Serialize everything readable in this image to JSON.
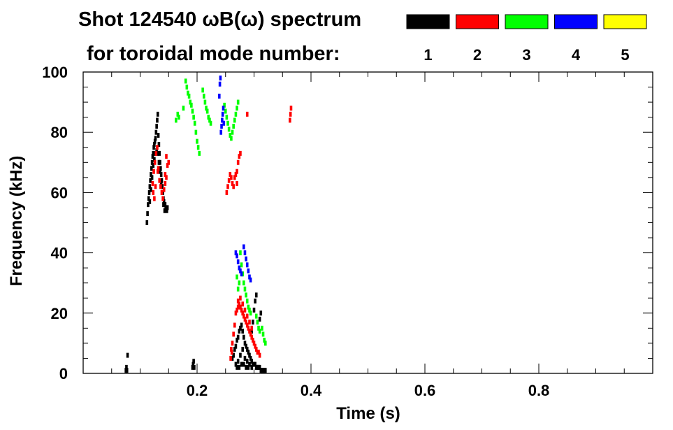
{
  "chart_data": {
    "type": "scatter",
    "title": "Shot 124540 ωB(ω) spectrum",
    "subtitle": "for toroidal mode number:",
    "xlabel": "Time (s)",
    "ylabel": "Frequency (kHz)",
    "xlim": [
      0.0,
      1.0
    ],
    "ylim": [
      0,
      100
    ],
    "x_ticks": [
      {
        "value": 0.2,
        "label": "0.2"
      },
      {
        "value": 0.4,
        "label": "0.4"
      },
      {
        "value": 0.6,
        "label": "0.6"
      },
      {
        "value": 0.8,
        "label": "0.8"
      }
    ],
    "y_ticks": [
      {
        "value": 0,
        "label": "0"
      },
      {
        "value": 20,
        "label": "20"
      },
      {
        "value": 40,
        "label": "40"
      },
      {
        "value": 60,
        "label": "60"
      },
      {
        "value": 80,
        "label": "80"
      },
      {
        "value": 100,
        "label": "100"
      }
    ],
    "legend_position": "top-right",
    "series": [
      {
        "name": "1",
        "color": "#000000",
        "points": [
          [
            0.112,
            50
          ],
          [
            0.113,
            53
          ],
          [
            0.114,
            56
          ],
          [
            0.115,
            58
          ],
          [
            0.116,
            60
          ],
          [
            0.117,
            62
          ],
          [
            0.118,
            64
          ],
          [
            0.119,
            66
          ],
          [
            0.12,
            68
          ],
          [
            0.121,
            70
          ],
          [
            0.122,
            72
          ],
          [
            0.123,
            73
          ],
          [
            0.124,
            75
          ],
          [
            0.125,
            76
          ],
          [
            0.126,
            77
          ],
          [
            0.127,
            78
          ],
          [
            0.128,
            80
          ],
          [
            0.129,
            82
          ],
          [
            0.13,
            84
          ],
          [
            0.131,
            86
          ],
          [
            0.132,
            79
          ],
          [
            0.133,
            76
          ],
          [
            0.134,
            73
          ],
          [
            0.135,
            70
          ],
          [
            0.136,
            68
          ],
          [
            0.137,
            66
          ],
          [
            0.138,
            64
          ],
          [
            0.139,
            62
          ],
          [
            0.14,
            60
          ],
          [
            0.141,
            58
          ],
          [
            0.142,
            57
          ],
          [
            0.143,
            56
          ],
          [
            0.144,
            56
          ],
          [
            0.145,
            55
          ],
          [
            0.146,
            55
          ],
          [
            0.147,
            54
          ],
          [
            0.148,
            55
          ],
          [
            0.117,
            57
          ],
          [
            0.119,
            61
          ],
          [
            0.121,
            65
          ],
          [
            0.123,
            69
          ],
          [
            0.125,
            71
          ],
          [
            0.127,
            73
          ],
          [
            0.129,
            74
          ],
          [
            0.131,
            73
          ],
          [
            0.133,
            70
          ],
          [
            0.135,
            67
          ],
          [
            0.137,
            63
          ],
          [
            0.139,
            60
          ],
          [
            0.141,
            56
          ],
          [
            0.143,
            54
          ],
          [
            0.262,
            5
          ],
          [
            0.264,
            6
          ],
          [
            0.266,
            8
          ],
          [
            0.268,
            9
          ],
          [
            0.27,
            11
          ],
          [
            0.272,
            12
          ],
          [
            0.274,
            14
          ],
          [
            0.276,
            15
          ],
          [
            0.278,
            16
          ],
          [
            0.28,
            14
          ],
          [
            0.282,
            12
          ],
          [
            0.284,
            10
          ],
          [
            0.286,
            9
          ],
          [
            0.288,
            8
          ],
          [
            0.29,
            7
          ],
          [
            0.292,
            6
          ],
          [
            0.294,
            5
          ],
          [
            0.296,
            4
          ],
          [
            0.298,
            3
          ],
          [
            0.3,
            3
          ],
          [
            0.302,
            3
          ],
          [
            0.304,
            2
          ],
          [
            0.306,
            2
          ],
          [
            0.308,
            2
          ],
          [
            0.31,
            2
          ],
          [
            0.312,
            1
          ],
          [
            0.314,
            1
          ],
          [
            0.316,
            1
          ],
          [
            0.318,
            1
          ],
          [
            0.32,
            1
          ],
          [
            0.268,
            3
          ],
          [
            0.272,
            4
          ],
          [
            0.276,
            6
          ],
          [
            0.28,
            8
          ],
          [
            0.284,
            5
          ],
          [
            0.288,
            4
          ],
          [
            0.292,
            3
          ],
          [
            0.296,
            2
          ],
          [
            0.27,
            2
          ],
          [
            0.274,
            2
          ],
          [
            0.278,
            3
          ],
          [
            0.282,
            3
          ],
          [
            0.286,
            2
          ],
          [
            0.29,
            2
          ],
          [
            0.296,
            14
          ],
          [
            0.298,
            17
          ],
          [
            0.3,
            21
          ],
          [
            0.302,
            24
          ],
          [
            0.304,
            26
          ],
          [
            0.31,
            18
          ],
          [
            0.312,
            20
          ],
          [
            0.075,
            1
          ],
          [
            0.076,
            2
          ],
          [
            0.077,
            1
          ],
          [
            0.078,
            6
          ],
          [
            0.192,
            2
          ],
          [
            0.193,
            3
          ],
          [
            0.194,
            4
          ],
          [
            0.195,
            2
          ]
        ]
      },
      {
        "name": "2",
        "color": "#ff0000",
        "points": [
          [
            0.122,
            63
          ],
          [
            0.124,
            67
          ],
          [
            0.126,
            70
          ],
          [
            0.128,
            73
          ],
          [
            0.13,
            75
          ],
          [
            0.132,
            68
          ],
          [
            0.134,
            64
          ],
          [
            0.136,
            62
          ],
          [
            0.138,
            60
          ],
          [
            0.14,
            58
          ],
          [
            0.142,
            61
          ],
          [
            0.144,
            63
          ],
          [
            0.146,
            65
          ],
          [
            0.148,
            69
          ],
          [
            0.15,
            70
          ],
          [
            0.146,
            72
          ],
          [
            0.144,
            66
          ],
          [
            0.123,
            60
          ],
          [
            0.125,
            58
          ],
          [
            0.127,
            62
          ],
          [
            0.131,
            67
          ],
          [
            0.27,
            21
          ],
          [
            0.272,
            22
          ],
          [
            0.274,
            23
          ],
          [
            0.276,
            22
          ],
          [
            0.278,
            21
          ],
          [
            0.28,
            20
          ],
          [
            0.282,
            19
          ],
          [
            0.284,
            18
          ],
          [
            0.286,
            17
          ],
          [
            0.288,
            16
          ],
          [
            0.29,
            15
          ],
          [
            0.292,
            14
          ],
          [
            0.294,
            13
          ],
          [
            0.296,
            12
          ],
          [
            0.298,
            11
          ],
          [
            0.3,
            10
          ],
          [
            0.302,
            9
          ],
          [
            0.304,
            8
          ],
          [
            0.306,
            7
          ],
          [
            0.308,
            7
          ],
          [
            0.31,
            6
          ],
          [
            0.26,
            8
          ],
          [
            0.262,
            10
          ],
          [
            0.264,
            13
          ],
          [
            0.266,
            16
          ],
          [
            0.268,
            20
          ],
          [
            0.259,
            5
          ],
          [
            0.261,
            7
          ],
          [
            0.272,
            24
          ],
          [
            0.276,
            25
          ],
          [
            0.28,
            23
          ],
          [
            0.284,
            21
          ],
          [
            0.288,
            19
          ],
          [
            0.292,
            17
          ],
          [
            0.296,
            15
          ],
          [
            0.252,
            60
          ],
          [
            0.254,
            62
          ],
          [
            0.256,
            64
          ],
          [
            0.258,
            66
          ],
          [
            0.26,
            65
          ],
          [
            0.262,
            63
          ],
          [
            0.264,
            62
          ],
          [
            0.266,
            65
          ],
          [
            0.268,
            66
          ],
          [
            0.27,
            67
          ],
          [
            0.272,
            70
          ],
          [
            0.274,
            72
          ],
          [
            0.276,
            73
          ],
          [
            0.27,
            63
          ],
          [
            0.288,
            86
          ],
          [
            0.363,
            84
          ],
          [
            0.364,
            86
          ],
          [
            0.365,
            88
          ]
        ]
      },
      {
        "name": "3",
        "color": "#00ff00",
        "points": [
          [
            0.18,
            97
          ],
          [
            0.182,
            95
          ],
          [
            0.184,
            93
          ],
          [
            0.186,
            92
          ],
          [
            0.188,
            90
          ],
          [
            0.19,
            89
          ],
          [
            0.192,
            87
          ],
          [
            0.194,
            85
          ],
          [
            0.196,
            83
          ],
          [
            0.198,
            80
          ],
          [
            0.2,
            77
          ],
          [
            0.202,
            75
          ],
          [
            0.204,
            73
          ],
          [
            0.21,
            94
          ],
          [
            0.212,
            92
          ],
          [
            0.214,
            90
          ],
          [
            0.216,
            88
          ],
          [
            0.218,
            87
          ],
          [
            0.22,
            85
          ],
          [
            0.222,
            84
          ],
          [
            0.224,
            83
          ],
          [
            0.248,
            89
          ],
          [
            0.25,
            87
          ],
          [
            0.252,
            85
          ],
          [
            0.254,
            83
          ],
          [
            0.256,
            81
          ],
          [
            0.258,
            79
          ],
          [
            0.26,
            78
          ],
          [
            0.262,
            80
          ],
          [
            0.264,
            82
          ],
          [
            0.266,
            84
          ],
          [
            0.268,
            86
          ],
          [
            0.27,
            88
          ],
          [
            0.272,
            90
          ],
          [
            0.163,
            84
          ],
          [
            0.166,
            86
          ],
          [
            0.168,
            85
          ],
          [
            0.176,
            88
          ],
          [
            0.276,
            40
          ],
          [
            0.278,
            36
          ],
          [
            0.28,
            33
          ],
          [
            0.282,
            30
          ],
          [
            0.284,
            28
          ],
          [
            0.286,
            26
          ],
          [
            0.288,
            24
          ],
          [
            0.29,
            22
          ],
          [
            0.292,
            21
          ],
          [
            0.294,
            20
          ],
          [
            0.304,
            19
          ],
          [
            0.306,
            17
          ],
          [
            0.308,
            15
          ],
          [
            0.31,
            14
          ],
          [
            0.314,
            15
          ],
          [
            0.316,
            13
          ],
          [
            0.318,
            11
          ],
          [
            0.32,
            10
          ],
          [
            0.272,
            28
          ],
          [
            0.274,
            30
          ],
          [
            0.27,
            32
          ]
        ]
      },
      {
        "name": "4",
        "color": "#0000ff",
        "points": [
          [
            0.242,
            80
          ],
          [
            0.243,
            82
          ],
          [
            0.244,
            84
          ],
          [
            0.245,
            86
          ],
          [
            0.246,
            88
          ],
          [
            0.247,
            83
          ],
          [
            0.24,
            96
          ],
          [
            0.241,
            98
          ],
          [
            0.239,
            92
          ],
          [
            0.282,
            42
          ],
          [
            0.284,
            40
          ],
          [
            0.286,
            38
          ],
          [
            0.288,
            36
          ],
          [
            0.29,
            34
          ],
          [
            0.292,
            32
          ],
          [
            0.294,
            31
          ],
          [
            0.268,
            40
          ],
          [
            0.27,
            39
          ],
          [
            0.272,
            37
          ],
          [
            0.274,
            35
          ],
          [
            0.276,
            34
          ],
          [
            0.278,
            33
          ]
        ]
      }
    ],
    "legend": [
      {
        "label": "1",
        "color": "#000000"
      },
      {
        "label": "2",
        "color": "#ff0000"
      },
      {
        "label": "3",
        "color": "#00ff00"
      },
      {
        "label": "4",
        "color": "#0000ff"
      },
      {
        "label": "5",
        "color": "#ffff00"
      }
    ]
  }
}
